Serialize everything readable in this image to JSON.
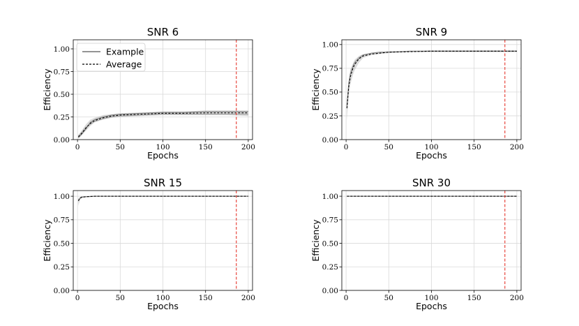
{
  "chart_data": [
    {
      "type": "line",
      "title": "SNR 6",
      "xlabel": "Epochs",
      "ylabel": "Efficiency",
      "xlim": [
        -5,
        205
      ],
      "ylim": [
        0,
        1.1
      ],
      "xticks": [
        0,
        50,
        100,
        150,
        200
      ],
      "xtick_labels": [
        "0",
        "50",
        "100",
        "150",
        "200"
      ],
      "yticks": [
        0,
        0.25,
        0.5,
        0.75,
        1.0
      ],
      "ytick_labels": [
        "0.00",
        "0.25",
        "0.50",
        "0.75",
        "1.00"
      ],
      "grid": true,
      "vline": {
        "x": 186,
        "color": "#e8453c",
        "style": "dashed"
      },
      "legend": {
        "placement": "top-left",
        "entries": [
          {
            "label": "Example",
            "style": "solid",
            "color": "#555555"
          },
          {
            "label": "Average",
            "style": "dashed",
            "color": "#000000"
          }
        ]
      },
      "band": {
        "x": [
          1,
          5,
          10,
          15,
          20,
          30,
          40,
          50,
          75,
          100,
          125,
          150,
          175,
          200
        ],
        "low": [
          0.01,
          0.05,
          0.1,
          0.15,
          0.19,
          0.22,
          0.24,
          0.25,
          0.26,
          0.27,
          0.27,
          0.27,
          0.27,
          0.26
        ],
        "high": [
          0.05,
          0.1,
          0.17,
          0.22,
          0.24,
          0.27,
          0.28,
          0.29,
          0.3,
          0.31,
          0.31,
          0.32,
          0.32,
          0.32
        ]
      },
      "series": [
        {
          "style": "dashed",
          "color": "#000000",
          "x": [
            1,
            5,
            10,
            15,
            20,
            30,
            40,
            50,
            75,
            100,
            125,
            150,
            175,
            200
          ],
          "y": [
            0.03,
            0.07,
            0.13,
            0.18,
            0.21,
            0.24,
            0.26,
            0.27,
            0.28,
            0.29,
            0.29,
            0.295,
            0.295,
            0.295
          ]
        },
        {
          "style": "solid",
          "color": "#888888",
          "x": [
            1,
            5,
            10,
            15,
            20,
            30,
            40,
            50,
            75,
            100,
            125,
            150,
            175,
            200
          ],
          "y": [
            0.02,
            0.06,
            0.12,
            0.19,
            0.22,
            0.25,
            0.27,
            0.28,
            0.29,
            0.3,
            0.3,
            0.31,
            0.31,
            0.31
          ]
        },
        {
          "style": "solid",
          "color": "#aaaaaa",
          "x": [
            1,
            5,
            10,
            15,
            20,
            30,
            40,
            50,
            75,
            100,
            125,
            150,
            175,
            200
          ],
          "y": [
            0.04,
            0.08,
            0.14,
            0.17,
            0.2,
            0.23,
            0.25,
            0.26,
            0.27,
            0.28,
            0.28,
            0.28,
            0.28,
            0.28
          ]
        }
      ]
    },
    {
      "type": "line",
      "title": "SNR 9",
      "xlabel": "Epochs",
      "ylabel": "Efficiency",
      "xlim": [
        -5,
        205
      ],
      "ylim": [
        0,
        1.05
      ],
      "xticks": [
        0,
        50,
        100,
        150,
        200
      ],
      "xtick_labels": [
        "0",
        "50",
        "100",
        "150",
        "200"
      ],
      "yticks": [
        0,
        0.25,
        0.5,
        0.75,
        1.0
      ],
      "ytick_labels": [
        "0.00",
        "0.25",
        "0.50",
        "0.75",
        "1.00"
      ],
      "grid": true,
      "vline": {
        "x": 186,
        "color": "#e8453c",
        "style": "dashed"
      },
      "band": {
        "x": [
          1,
          3,
          5,
          8,
          10,
          15,
          20,
          30,
          40,
          50,
          75,
          100,
          150,
          200
        ],
        "low": [
          0.2,
          0.45,
          0.58,
          0.68,
          0.73,
          0.81,
          0.86,
          0.89,
          0.9,
          0.91,
          0.92,
          0.92,
          0.92,
          0.92
        ],
        "high": [
          0.4,
          0.62,
          0.74,
          0.8,
          0.84,
          0.88,
          0.9,
          0.91,
          0.92,
          0.93,
          0.93,
          0.94,
          0.94,
          0.94
        ]
      },
      "series": [
        {
          "style": "dashed",
          "color": "#000000",
          "x": [
            1,
            3,
            5,
            8,
            10,
            15,
            20,
            30,
            40,
            50,
            75,
            100,
            150,
            200
          ],
          "y": [
            0.33,
            0.55,
            0.66,
            0.75,
            0.79,
            0.85,
            0.88,
            0.9,
            0.91,
            0.92,
            0.925,
            0.93,
            0.93,
            0.93
          ]
        },
        {
          "style": "solid",
          "color": "#888888",
          "x": [
            1,
            3,
            5,
            8,
            10,
            15,
            20,
            30,
            40,
            50,
            75,
            100,
            150,
            200
          ],
          "y": [
            0.35,
            0.58,
            0.69,
            0.77,
            0.81,
            0.86,
            0.89,
            0.91,
            0.92,
            0.92,
            0.93,
            0.93,
            0.93,
            0.93
          ]
        }
      ]
    },
    {
      "type": "line",
      "title": "SNR 15",
      "xlabel": "Epochs",
      "ylabel": "Efficiency",
      "xlim": [
        -5,
        205
      ],
      "ylim": [
        0,
        1.06
      ],
      "xticks": [
        0,
        50,
        100,
        150,
        200
      ],
      "xtick_labels": [
        "0",
        "50",
        "100",
        "150",
        "200"
      ],
      "yticks": [
        0,
        0.25,
        0.5,
        0.75,
        1.0
      ],
      "ytick_labels": [
        "0.00",
        "0.25",
        "0.50",
        "0.75",
        "1.00"
      ],
      "grid": true,
      "vline": {
        "x": 186,
        "color": "#e8453c",
        "style": "dashed"
      },
      "band": {
        "x": [
          1,
          3,
          5,
          10,
          20,
          50,
          100,
          200
        ],
        "low": [
          0.9,
          0.96,
          0.98,
          0.99,
          0.995,
          1.0,
          1.0,
          1.0
        ],
        "high": [
          0.98,
          0.99,
          1.0,
          1.0,
          1.0,
          1.0,
          1.0,
          1.0
        ]
      },
      "series": [
        {
          "style": "dashed",
          "color": "#000000",
          "x": [
            1,
            3,
            5,
            10,
            20,
            50,
            100,
            200
          ],
          "y": [
            0.95,
            0.98,
            0.99,
            0.995,
            1.0,
            1.0,
            1.0,
            1.0
          ]
        },
        {
          "style": "solid",
          "color": "#888888",
          "x": [
            1,
            3,
            5,
            10,
            20,
            50,
            100,
            200
          ],
          "y": [
            0.96,
            0.98,
            0.99,
            0.995,
            1.0,
            1.0,
            1.0,
            1.0
          ]
        }
      ]
    },
    {
      "type": "line",
      "title": "SNR 30",
      "xlabel": "Epochs",
      "ylabel": "Efficiency",
      "xlim": [
        -5,
        205
      ],
      "ylim": [
        0,
        1.06
      ],
      "xticks": [
        0,
        50,
        100,
        150,
        200
      ],
      "xtick_labels": [
        "0",
        "50",
        "100",
        "150",
        "200"
      ],
      "yticks": [
        0,
        0.25,
        0.5,
        0.75,
        1.0
      ],
      "ytick_labels": [
        "0.00",
        "0.25",
        "0.50",
        "0.75",
        "1.00"
      ],
      "grid": true,
      "vline": {
        "x": 186,
        "color": "#e8453c",
        "style": "dashed"
      },
      "series": [
        {
          "style": "dashed",
          "color": "#000000",
          "x": [
            1,
            200
          ],
          "y": [
            1.0,
            1.0
          ]
        },
        {
          "style": "solid",
          "color": "#888888",
          "x": [
            1,
            200
          ],
          "y": [
            1.0,
            1.0
          ]
        }
      ]
    }
  ]
}
